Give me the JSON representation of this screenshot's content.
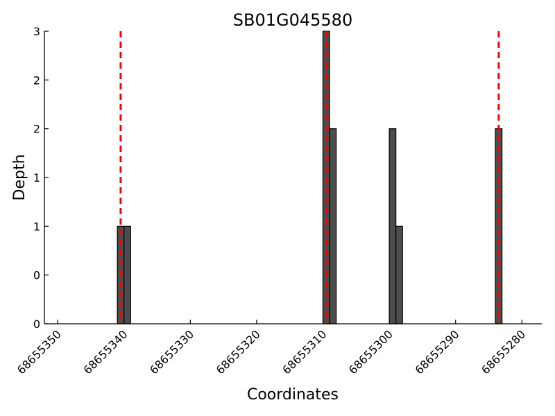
{
  "chart_data": {
    "type": "bar",
    "title": "SB01G045580",
    "xlabel": "Coordinates",
    "ylabel": "Depth",
    "x_reversed": true,
    "xlim": [
      68655352,
      68655277
    ],
    "ylim": [
      0,
      3
    ],
    "x_ticks": [
      68655350,
      68655340,
      68655330,
      68655320,
      68655310,
      68655300,
      68655290,
      68655280
    ],
    "y_ticks": [
      0,
      0.5,
      1,
      1.5,
      2,
      2.5,
      3
    ],
    "y_tick_labels": [
      "0",
      "0",
      "1",
      "1",
      "2",
      "2",
      "3"
    ],
    "bar_width": 1,
    "bars": [
      {
        "x": 68655341,
        "value": 1
      },
      {
        "x": 68655340,
        "value": 1
      },
      {
        "x": 68655310,
        "value": 3
      },
      {
        "x": 68655309,
        "value": 2
      },
      {
        "x": 68655300,
        "value": 2
      },
      {
        "x": 68655299,
        "value": 1
      },
      {
        "x": 68655284,
        "value": 2
      }
    ],
    "markers": [
      68655340.5,
      68655309.5,
      68655283.5
    ],
    "bar_color": "#4d4d4d",
    "marker_color": "#ff0000",
    "grid": false
  }
}
